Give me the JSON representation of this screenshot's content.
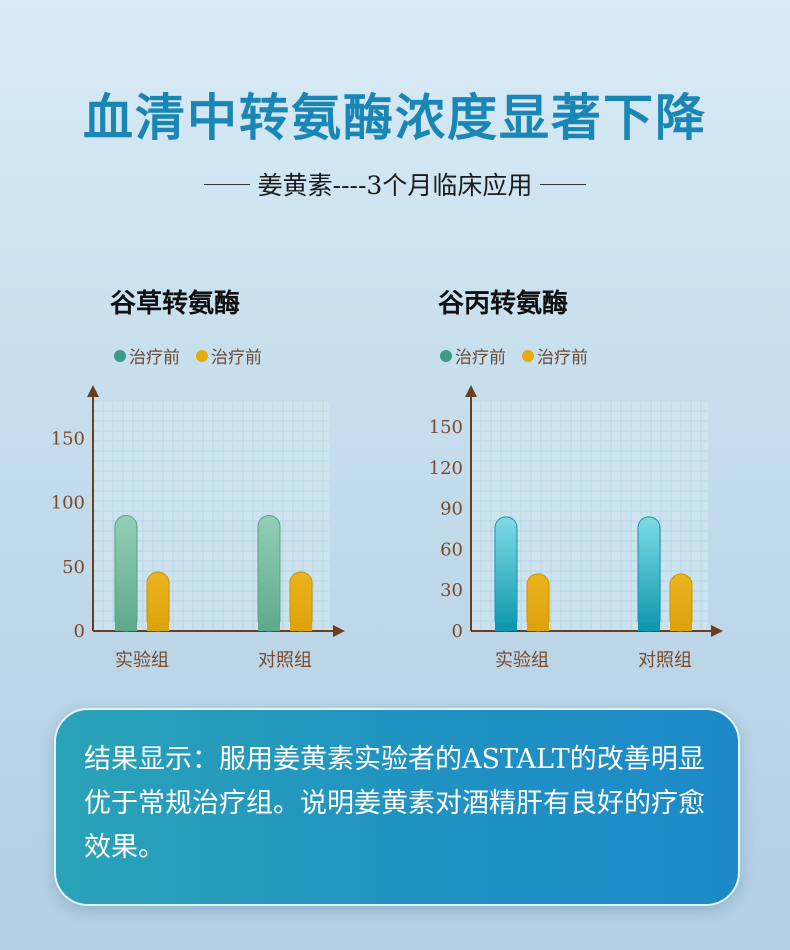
{
  "header": {
    "title": "血清中转氨酶浓度显著下降",
    "subtitle": "姜黄素----3个月临床应用"
  },
  "colors": {
    "teal": "#6cb89c",
    "amber": "#e5ac0e",
    "cyan": "#1fa2b8",
    "axis": "#6b3e1e"
  },
  "chart_data": [
    {
      "type": "bar",
      "title": "谷草转氨酶",
      "legend": [
        "治疗前",
        "治疗前"
      ],
      "categories": [
        "实验组",
        "对照组"
      ],
      "series": [
        {
          "name": "治疗前",
          "values": [
            90,
            90
          ]
        },
        {
          "name": "治疗前",
          "values": [
            46,
            46
          ]
        }
      ],
      "yticks": [
        0,
        50,
        100,
        150
      ],
      "ylim": [
        0,
        180
      ],
      "grid": true
    },
    {
      "type": "bar",
      "title": "谷丙转氨酶",
      "legend": [
        "治疗前",
        "治疗前"
      ],
      "categories": [
        "实验组",
        "对照组"
      ],
      "series": [
        {
          "name": "治疗前",
          "values": [
            84,
            84
          ]
        },
        {
          "name": "治疗前",
          "values": [
            42,
            42
          ]
        }
      ],
      "yticks": [
        0,
        30,
        60,
        90,
        120,
        150
      ],
      "ylim": [
        0,
        170
      ],
      "grid": true
    }
  ],
  "note": {
    "text": "结果显示：服用姜黄素实验者的ASTALT的改善明显优于常规治疗组。说明姜黄素对酒精肝有良好的疗愈效果。"
  }
}
